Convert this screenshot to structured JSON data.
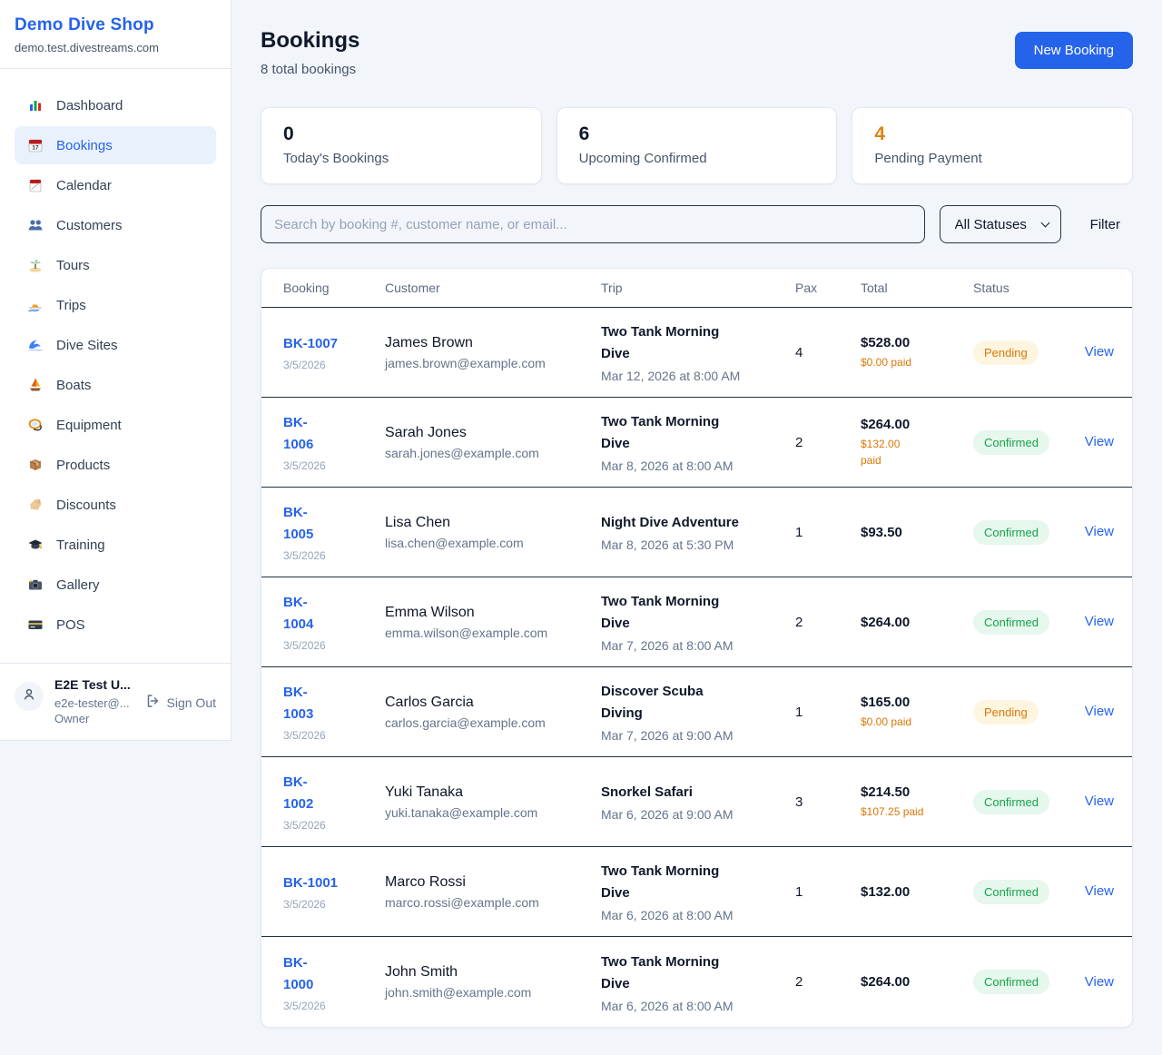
{
  "app": {
    "name": "Demo Dive Shop",
    "domain": "demo.test.divestreams.com",
    "accent_color": "#2563eb"
  },
  "sidebar": {
    "items": [
      {
        "label": "Dashboard",
        "icon": "bar-chart-icon",
        "active": false
      },
      {
        "label": "Bookings",
        "icon": "calendar-date-icon",
        "active": true
      },
      {
        "label": "Calendar",
        "icon": "tear-off-calendar-icon",
        "active": false
      },
      {
        "label": "Customers",
        "icon": "people-icon",
        "active": false
      },
      {
        "label": "Tours",
        "icon": "island-icon",
        "active": false
      },
      {
        "label": "Trips",
        "icon": "speedboat-icon",
        "active": false
      },
      {
        "label": "Dive Sites",
        "icon": "wave-icon",
        "active": false
      },
      {
        "label": "Boats",
        "icon": "sailboat-icon",
        "active": false
      },
      {
        "label": "Equipment",
        "icon": "dive-mask-icon",
        "active": false
      },
      {
        "label": "Products",
        "icon": "package-icon",
        "active": false
      },
      {
        "label": "Discounts",
        "icon": "tag-icon",
        "active": false
      },
      {
        "label": "Training",
        "icon": "graduation-cap-icon",
        "active": false
      },
      {
        "label": "Gallery",
        "icon": "camera-icon",
        "active": false
      },
      {
        "label": "POS",
        "icon": "credit-card-icon",
        "active": false
      }
    ]
  },
  "user": {
    "name": "E2E Test U...",
    "email": "e2e-tester@...",
    "role": "Owner",
    "signout_label": "Sign Out"
  },
  "header": {
    "title": "Bookings",
    "subtitle": "8 total bookings",
    "new_booking_label": "New Booking"
  },
  "stats": [
    {
      "value": "0",
      "label": "Today's Bookings",
      "color": "#0f172a"
    },
    {
      "value": "6",
      "label": "Upcoming Confirmed",
      "color": "#0f172a"
    },
    {
      "value": "4",
      "label": "Pending Payment",
      "color": "#dd8513"
    }
  ],
  "filters": {
    "search_placeholder": "Search by booking #, customer name, or email...",
    "status_selected": "All Statuses",
    "filter_label": "Filter"
  },
  "status_colors": {
    "Pending": {
      "text": "#d97706",
      "bg": "#fdf5df"
    },
    "Confirmed": {
      "text": "#16a34a",
      "bg": "#e6f7ed"
    }
  },
  "table": {
    "columns": [
      "Booking",
      "Customer",
      "Trip",
      "Pax",
      "Total",
      "Status"
    ],
    "view_label": "View",
    "rows": [
      {
        "id": "BK-1007",
        "date": "3/5/2026",
        "customer": "James Brown",
        "email": "james.brown@example.com",
        "trip": "Two Tank Morning\nDive",
        "trip_datetime": "Mar 12, 2026 at 8:00 AM",
        "pax": "4",
        "total": "$528.00",
        "paid": "$0.00 paid",
        "status": "Pending"
      },
      {
        "id": "BK-\n1006",
        "date": "3/5/2026",
        "customer": "Sarah Jones",
        "email": "sarah.jones@example.com",
        "trip": "Two Tank Morning\nDive",
        "trip_datetime": "Mar 8, 2026 at 8:00 AM",
        "pax": "2",
        "total": "$264.00",
        "paid": "$132.00\npaid",
        "status": "Confirmed"
      },
      {
        "id": "BK-\n1005",
        "date": "3/5/2026",
        "customer": "Lisa Chen",
        "email": "lisa.chen@example.com",
        "trip": "Night Dive Adventure",
        "trip_datetime": "Mar 8, 2026 at 5:30 PM",
        "pax": "1",
        "total": "$93.50",
        "paid": "",
        "status": "Confirmed"
      },
      {
        "id": "BK-\n1004",
        "date": "3/5/2026",
        "customer": "Emma Wilson",
        "email": "emma.wilson@example.com",
        "trip": "Two Tank Morning\nDive",
        "trip_datetime": "Mar 7, 2026 at 8:00 AM",
        "pax": "2",
        "total": "$264.00",
        "paid": "",
        "status": "Confirmed"
      },
      {
        "id": "BK-\n1003",
        "date": "3/5/2026",
        "customer": "Carlos Garcia",
        "email": "carlos.garcia@example.com",
        "trip": "Discover Scuba\nDiving",
        "trip_datetime": "Mar 7, 2026 at 9:00 AM",
        "pax": "1",
        "total": "$165.00",
        "paid": "$0.00 paid",
        "status": "Pending"
      },
      {
        "id": "BK-\n1002",
        "date": "3/5/2026",
        "customer": "Yuki Tanaka",
        "email": "yuki.tanaka@example.com",
        "trip": "Snorkel Safari",
        "trip_datetime": "Mar 6, 2026 at 9:00 AM",
        "pax": "3",
        "total": "$214.50",
        "paid": "$107.25 paid",
        "status": "Confirmed"
      },
      {
        "id": "BK-1001",
        "date": "3/5/2026",
        "customer": "Marco Rossi",
        "email": "marco.rossi@example.com",
        "trip": "Two Tank Morning\nDive",
        "trip_datetime": "Mar 6, 2026 at 8:00 AM",
        "pax": "1",
        "total": "$132.00",
        "paid": "",
        "status": "Confirmed"
      },
      {
        "id": "BK-\n1000",
        "date": "3/5/2026",
        "customer": "John Smith",
        "email": "john.smith@example.com",
        "trip": "Two Tank Morning\nDive",
        "trip_datetime": "Mar 6, 2026 at 8:00 AM",
        "pax": "2",
        "total": "$264.00",
        "paid": "",
        "status": "Confirmed"
      }
    ]
  }
}
